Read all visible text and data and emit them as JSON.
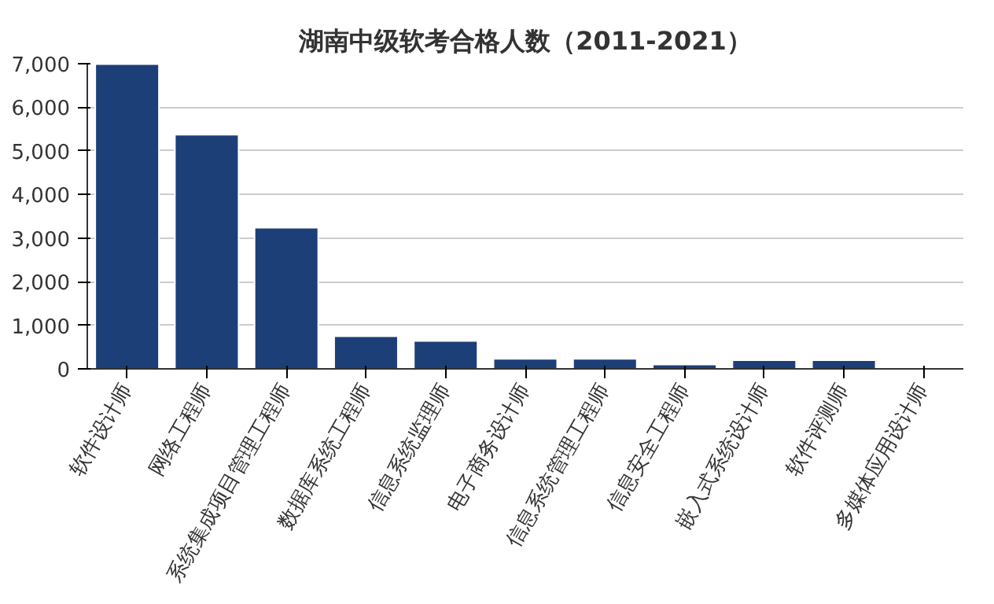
{
  "chart_data": {
    "type": "bar",
    "title": "湖南中级软考合格人数（2011-2021）",
    "categories": [
      "软件设计师",
      "网络工程师",
      "系统集成项目管理工程师",
      "数据库系统工程师",
      "信息系统监理师",
      "电子商务设计师",
      "信息系统管理工程师",
      "信息安全工程师",
      "嵌入式系统设计师",
      "软件评测师",
      "多媒体应用设计师"
    ],
    "values": [
      6990,
      5370,
      3240,
      750,
      640,
      230,
      230,
      100,
      200,
      200,
      30
    ],
    "color": "#1c3f77",
    "ylim": [
      0,
      7000
    ],
    "yticks": [
      {
        "value": 0,
        "label": "0"
      },
      {
        "value": 1000,
        "label": "1,000"
      },
      {
        "value": 2000,
        "label": "2,000"
      },
      {
        "value": 3000,
        "label": "3,000"
      },
      {
        "value": 4000,
        "label": "4,000"
      },
      {
        "value": 5000,
        "label": "5,000"
      },
      {
        "value": 6000,
        "label": "6,000"
      },
      {
        "value": 7000,
        "label": "7,000"
      }
    ],
    "grid": "y"
  }
}
